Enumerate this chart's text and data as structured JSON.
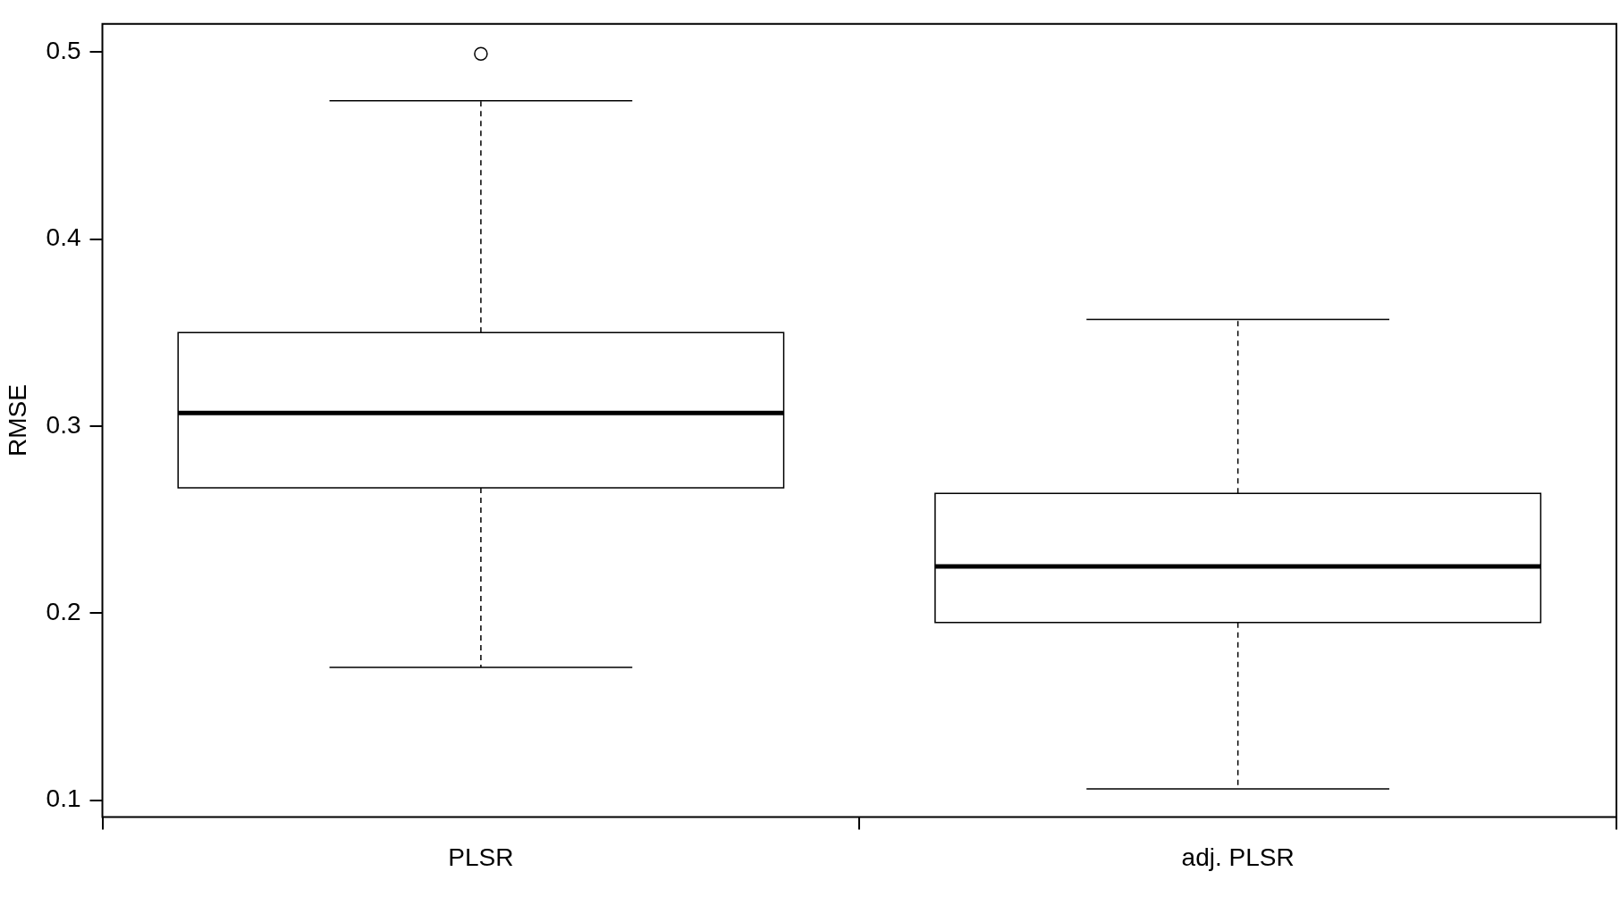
{
  "chart_data": {
    "type": "box",
    "ylabel": "RMSE",
    "categories": [
      "PLSR",
      "adj. PLSR"
    ],
    "boxes": [
      {
        "low": 0.171,
        "q1": 0.267,
        "median": 0.307,
        "q3": 0.35,
        "high": 0.474,
        "outliers": [
          0.499
        ]
      },
      {
        "low": 0.106,
        "q1": 0.195,
        "median": 0.225,
        "q3": 0.264,
        "high": 0.357
      }
    ],
    "ylim": [
      0.091,
      0.515
    ],
    "yticks": [
      0.1,
      0.2,
      0.3,
      0.4,
      0.5
    ]
  }
}
